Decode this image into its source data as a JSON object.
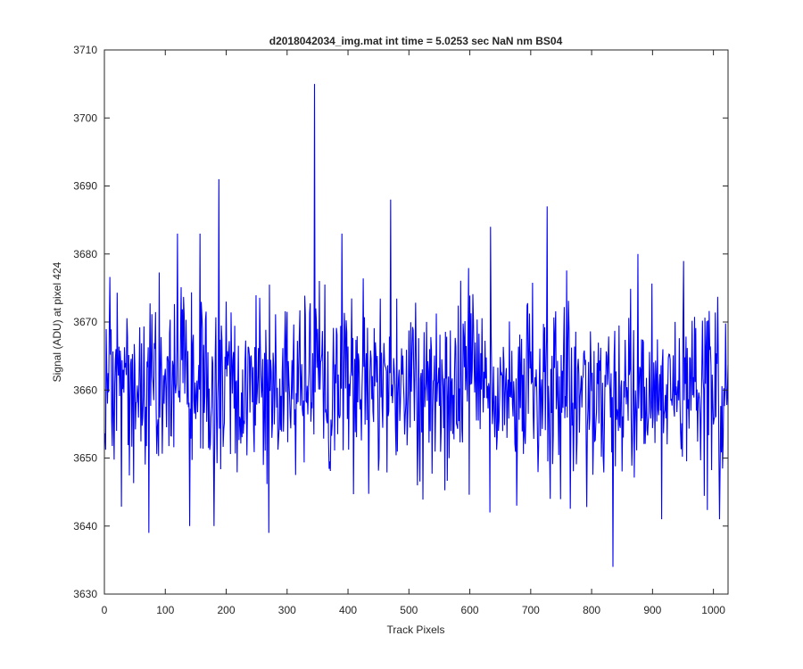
{
  "chart_data": {
    "type": "line",
    "title": "d2018042034_img.mat int time = 5.0253 sec  NaN nm BS04",
    "xlabel": "Track Pixels",
    "ylabel": "Signal (ADU) at pixel 424",
    "xlim": [
      0,
      1024
    ],
    "ylim": [
      3630,
      3710
    ],
    "xticks": [
      0,
      100,
      200,
      300,
      400,
      500,
      600,
      700,
      800,
      900,
      1000
    ],
    "yticks": [
      3630,
      3640,
      3650,
      3660,
      3670,
      3680,
      3690,
      3700,
      3710
    ],
    "grid": false,
    "box": true,
    "series": [
      {
        "color": "#0000ff",
        "x_start": 1,
        "x_step": 1,
        "mean": 3660.5,
        "std": 6.3,
        "noise_description": "dense white-noise trace",
        "peaks": [
          {
            "x": 73,
            "y": 3639
          },
          {
            "x": 120,
            "y": 3683
          },
          {
            "x": 140,
            "y": 3640
          },
          {
            "x": 157,
            "y": 3683
          },
          {
            "x": 188,
            "y": 3691
          },
          {
            "x": 180,
            "y": 3640
          },
          {
            "x": 270,
            "y": 3639
          },
          {
            "x": 345,
            "y": 3705
          },
          {
            "x": 390,
            "y": 3683
          },
          {
            "x": 470,
            "y": 3688
          },
          {
            "x": 634,
            "y": 3684
          },
          {
            "x": 677,
            "y": 3643
          },
          {
            "x": 727,
            "y": 3687
          },
          {
            "x": 732,
            "y": 3644
          },
          {
            "x": 835,
            "y": 3634
          },
          {
            "x": 915,
            "y": 3641
          },
          {
            "x": 1010,
            "y": 3641
          }
        ]
      }
    ]
  }
}
